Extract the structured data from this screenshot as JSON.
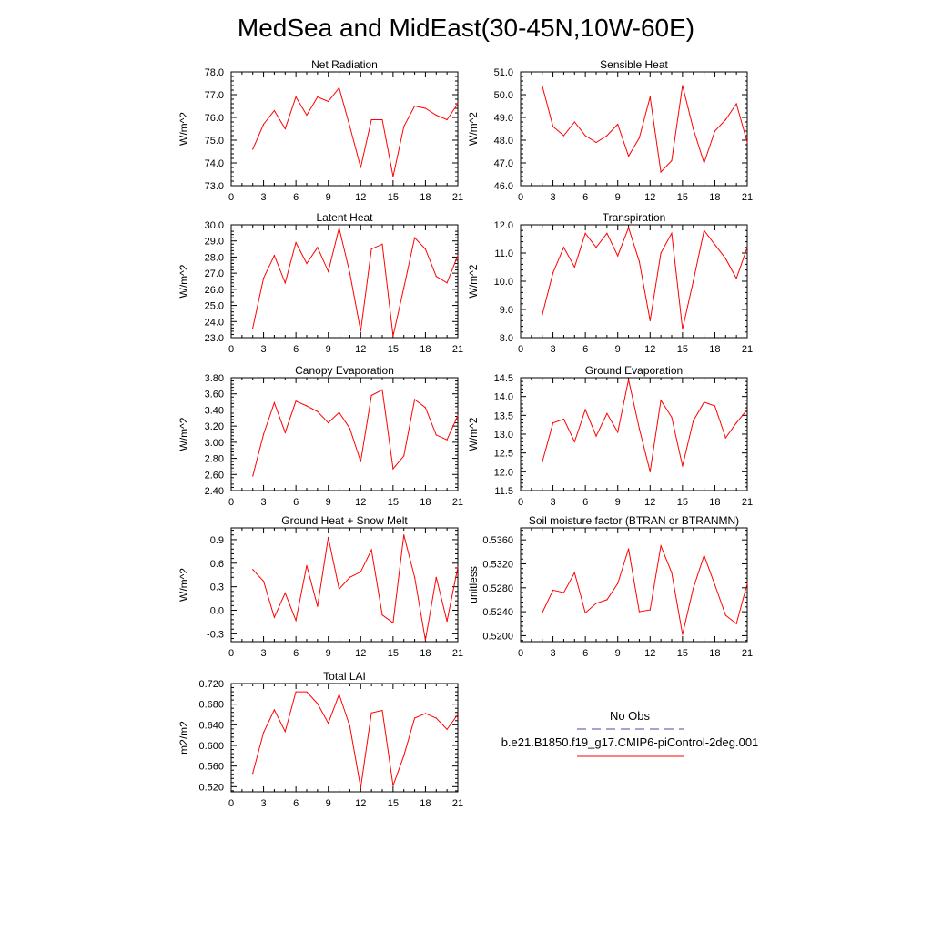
{
  "title": "MedSea and MidEast(30-45N,10W-60E)",
  "colors": {
    "model": "#ff0000",
    "obs": "#4a4aa0",
    "axes": "#000000"
  },
  "legend": {
    "obs_label": "No Obs",
    "model_label": "b.e21.B1850.f19_g17.CMIP6-piControl-2deg.001"
  },
  "chart_data": [
    {
      "type": "line",
      "title": "Net Radiation",
      "ylabel": "W/m^2",
      "xlim": [
        0,
        21
      ],
      "xticks": [
        0,
        3,
        6,
        9,
        12,
        15,
        18,
        21
      ],
      "ylim": [
        73.0,
        78.0
      ],
      "yticks": [
        73.0,
        74.0,
        75.0,
        76.0,
        77.0,
        78.0
      ],
      "ydec": 1,
      "x": [
        2,
        3,
        4,
        5,
        6,
        7,
        8,
        9,
        10,
        11,
        12,
        13,
        14,
        15,
        16,
        17,
        18,
        19,
        20,
        21
      ],
      "values": [
        74.6,
        75.7,
        76.3,
        75.5,
        76.9,
        76.1,
        76.9,
        76.7,
        77.3,
        75.6,
        73.8,
        75.9,
        75.9,
        73.4,
        75.6,
        76.5,
        76.4,
        76.1,
        75.9,
        76.6
      ]
    },
    {
      "type": "line",
      "title": "Sensible Heat",
      "ylabel": "W/m^2",
      "xlim": [
        0,
        21
      ],
      "xticks": [
        0,
        3,
        6,
        9,
        12,
        15,
        18,
        21
      ],
      "ylim": [
        46.0,
        51.0
      ],
      "yticks": [
        46.0,
        47.0,
        48.0,
        49.0,
        50.0,
        51.0
      ],
      "ydec": 1,
      "x": [
        2,
        3,
        4,
        5,
        6,
        7,
        8,
        9,
        10,
        11,
        12,
        13,
        14,
        15,
        16,
        17,
        18,
        19,
        20,
        21
      ],
      "values": [
        50.4,
        48.6,
        48.2,
        48.8,
        48.2,
        47.9,
        48.2,
        48.7,
        47.3,
        48.1,
        49.9,
        46.6,
        47.1,
        50.4,
        48.5,
        47.0,
        48.4,
        48.9,
        49.6,
        47.9
      ]
    },
    {
      "type": "line",
      "title": "Latent Heat",
      "ylabel": "W/m^2",
      "xlim": [
        0,
        21
      ],
      "xticks": [
        0,
        3,
        6,
        9,
        12,
        15,
        18,
        21
      ],
      "ylim": [
        23.0,
        30.0
      ],
      "yticks": [
        23.0,
        24.0,
        25.0,
        26.0,
        27.0,
        28.0,
        29.0,
        30.0
      ],
      "ydec": 1,
      "x": [
        2,
        3,
        4,
        5,
        6,
        7,
        8,
        9,
        10,
        11,
        12,
        13,
        14,
        15,
        16,
        17,
        18,
        19,
        20,
        21
      ],
      "values": [
        23.6,
        26.7,
        28.1,
        26.4,
        28.9,
        27.6,
        28.6,
        27.1,
        29.8,
        27.0,
        23.4,
        28.5,
        28.8,
        23.1,
        26.1,
        29.2,
        28.5,
        26.8,
        26.4,
        28.1
      ]
    },
    {
      "type": "line",
      "title": "Transpiration",
      "ylabel": "W/m^2",
      "xlim": [
        0,
        21
      ],
      "xticks": [
        0,
        3,
        6,
        9,
        12,
        15,
        18,
        21
      ],
      "ylim": [
        8.0,
        12.0
      ],
      "yticks": [
        8.0,
        9.0,
        10.0,
        11.0,
        12.0
      ],
      "ydec": 1,
      "x": [
        2,
        3,
        4,
        5,
        6,
        7,
        8,
        9,
        10,
        11,
        12,
        13,
        14,
        15,
        16,
        17,
        18,
        19,
        20,
        21
      ],
      "values": [
        8.8,
        10.3,
        11.2,
        10.5,
        11.7,
        11.2,
        11.7,
        10.9,
        11.9,
        10.7,
        8.6,
        11.0,
        11.7,
        8.3,
        10.0,
        11.8,
        11.3,
        10.8,
        10.1,
        11.2
      ]
    },
    {
      "type": "line",
      "title": "Canopy Evaporation",
      "ylabel": "W/m^2",
      "xlim": [
        0,
        21
      ],
      "xticks": [
        0,
        3,
        6,
        9,
        12,
        15,
        18,
        21
      ],
      "ylim": [
        2.4,
        3.8
      ],
      "yticks": [
        2.4,
        2.6,
        2.8,
        3.0,
        3.2,
        3.4,
        3.6,
        3.8
      ],
      "ydec": 2,
      "x": [
        2,
        3,
        4,
        5,
        6,
        7,
        8,
        9,
        10,
        11,
        12,
        13,
        14,
        15,
        16,
        17,
        18,
        19,
        20,
        21
      ],
      "values": [
        2.58,
        3.1,
        3.49,
        3.12,
        3.51,
        3.45,
        3.38,
        3.24,
        3.37,
        3.17,
        2.76,
        3.58,
        3.65,
        2.67,
        2.83,
        3.53,
        3.43,
        3.09,
        3.03,
        3.33
      ]
    },
    {
      "type": "line",
      "title": "Ground Evaporation",
      "ylabel": "W/m^2",
      "xlim": [
        0,
        21
      ],
      "xticks": [
        0,
        3,
        6,
        9,
        12,
        15,
        18,
        21
      ],
      "ylim": [
        11.5,
        14.5
      ],
      "yticks": [
        11.5,
        12.0,
        12.5,
        13.0,
        13.5,
        14.0,
        14.5
      ],
      "ydec": 1,
      "x": [
        2,
        3,
        4,
        5,
        6,
        7,
        8,
        9,
        10,
        11,
        12,
        13,
        14,
        15,
        16,
        17,
        18,
        19,
        20,
        21
      ],
      "values": [
        12.25,
        13.3,
        13.4,
        12.8,
        13.65,
        12.95,
        13.55,
        13.05,
        14.45,
        13.15,
        12.0,
        13.9,
        13.45,
        12.15,
        13.35,
        13.85,
        13.75,
        12.9,
        13.3,
        13.65
      ]
    },
    {
      "type": "line",
      "title": "Ground Heat + Snow Melt",
      "ylabel": "W/m^2",
      "xlim": [
        0,
        21
      ],
      "xticks": [
        0,
        3,
        6,
        9,
        12,
        15,
        18,
        21
      ],
      "ylim": [
        -0.4,
        1.05
      ],
      "yticks": [
        -0.3,
        0.0,
        0.3,
        0.6,
        0.9
      ],
      "ydec": 1,
      "x": [
        2,
        3,
        4,
        5,
        6,
        7,
        8,
        9,
        10,
        11,
        12,
        13,
        14,
        15,
        16,
        17,
        18,
        19,
        20,
        21
      ],
      "values": [
        0.52,
        0.37,
        -0.09,
        0.22,
        -0.13,
        0.57,
        0.05,
        0.93,
        0.27,
        0.42,
        0.49,
        0.77,
        -0.06,
        -0.16,
        0.96,
        0.42,
        -0.38,
        0.42,
        -0.14,
        0.55
      ]
    },
    {
      "type": "line",
      "title": "Soil moisture factor (BTRAN or BTRANMN)",
      "ylabel": "unitless",
      "xlim": [
        0,
        21
      ],
      "xticks": [
        0,
        3,
        6,
        9,
        12,
        15,
        18,
        21
      ],
      "ylim": [
        0.519,
        0.538
      ],
      "yticks": [
        0.52,
        0.524,
        0.528,
        0.532,
        0.536
      ],
      "ydec": 4,
      "x": [
        2,
        3,
        4,
        5,
        6,
        7,
        8,
        9,
        10,
        11,
        12,
        13,
        14,
        15,
        16,
        17,
        18,
        19,
        20,
        21
      ],
      "values": [
        0.5238,
        0.5276,
        0.5272,
        0.5305,
        0.5238,
        0.5254,
        0.526,
        0.5287,
        0.5345,
        0.524,
        0.5243,
        0.535,
        0.5305,
        0.5202,
        0.5279,
        0.5334,
        0.5285,
        0.5234,
        0.522,
        0.5287
      ]
    },
    {
      "type": "line",
      "title": "Total LAI",
      "ylabel": "m2/m2",
      "xlim": [
        0,
        21
      ],
      "xticks": [
        0,
        3,
        6,
        9,
        12,
        15,
        18,
        21
      ],
      "ylim": [
        0.51,
        0.72
      ],
      "yticks": [
        0.52,
        0.56,
        0.6,
        0.64,
        0.68,
        0.72
      ],
      "ydec": 3,
      "x": [
        2,
        3,
        4,
        5,
        6,
        7,
        8,
        9,
        10,
        11,
        12,
        13,
        14,
        15,
        16,
        17,
        18,
        19,
        20,
        21
      ],
      "values": [
        0.546,
        0.625,
        0.669,
        0.627,
        0.704,
        0.704,
        0.681,
        0.643,
        0.699,
        0.637,
        0.518,
        0.663,
        0.668,
        0.522,
        0.58,
        0.653,
        0.662,
        0.653,
        0.631,
        0.66
      ]
    }
  ]
}
